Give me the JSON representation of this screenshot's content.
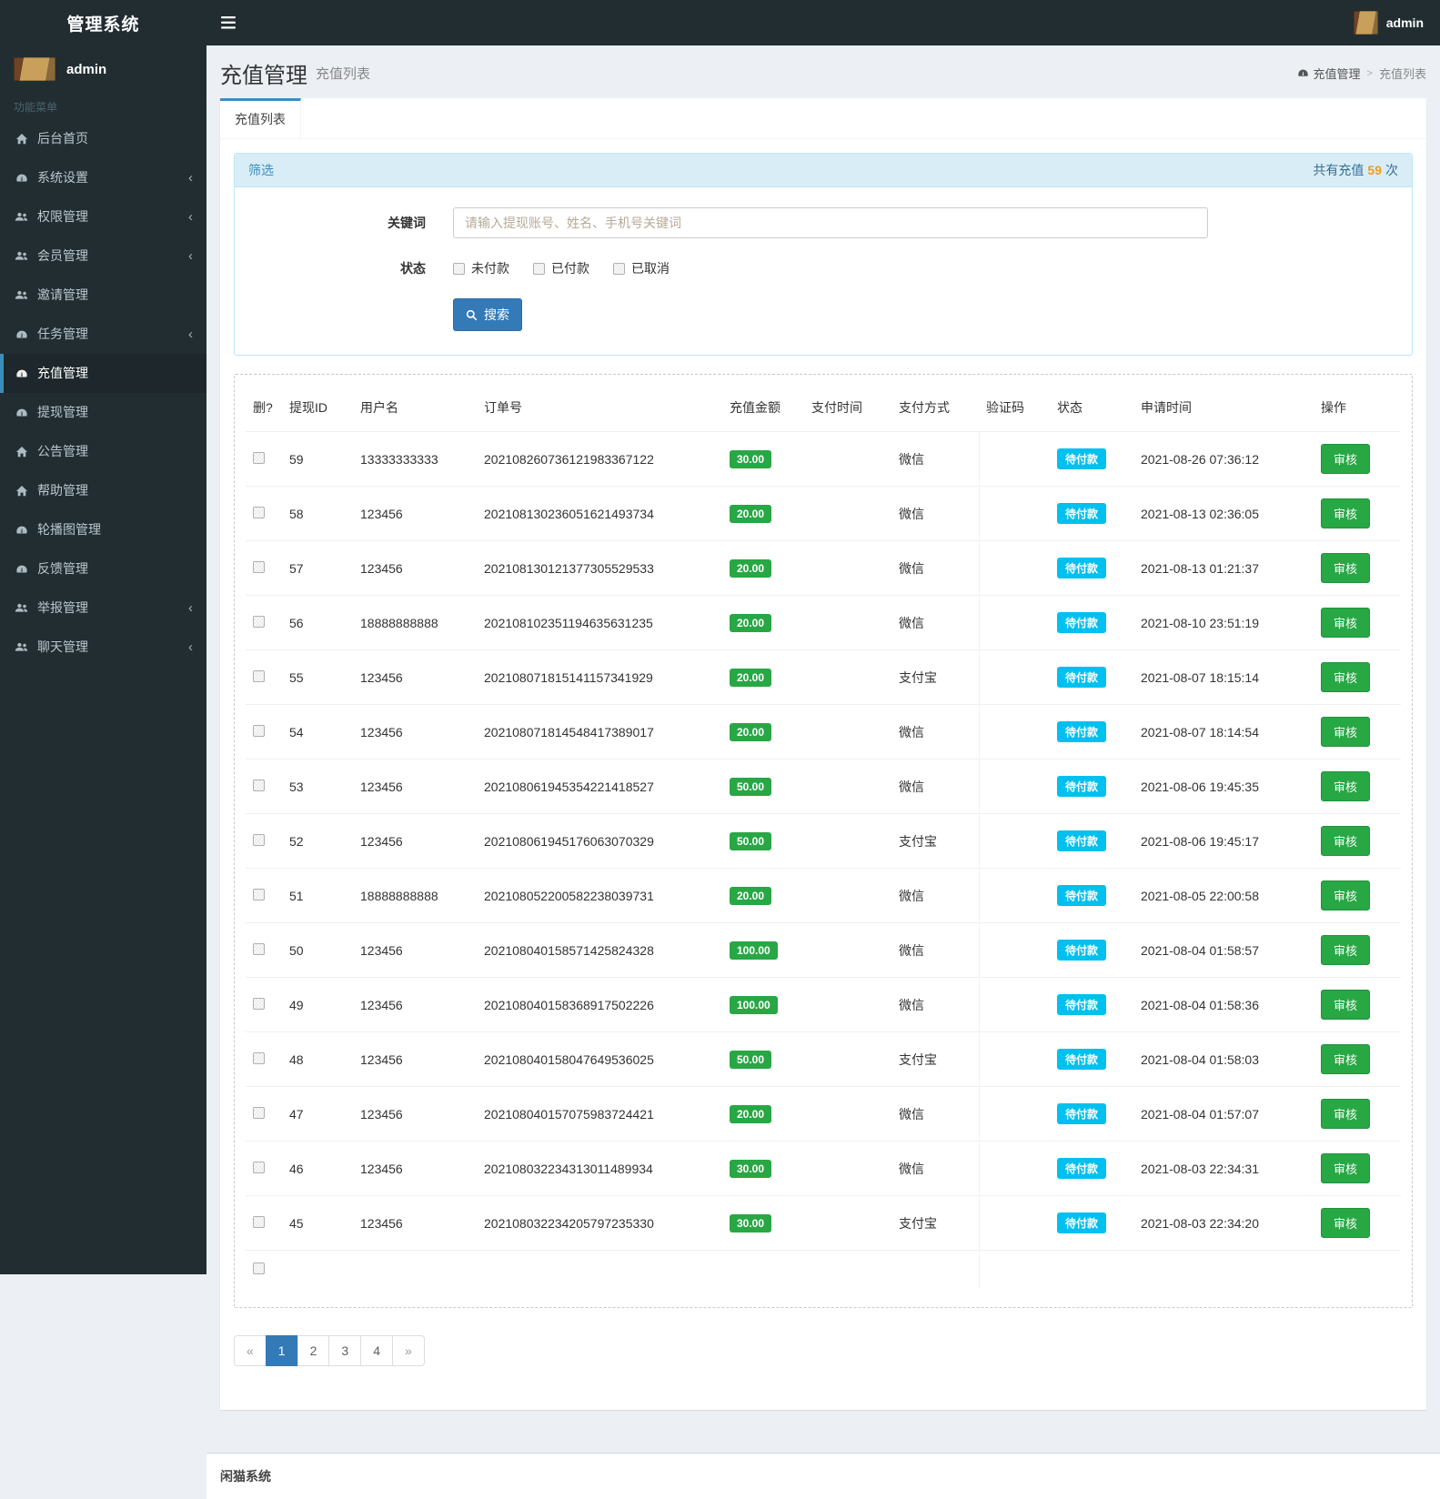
{
  "app": {
    "title": "管理系统"
  },
  "header": {
    "user": "admin"
  },
  "sidebar": {
    "user_name": "admin",
    "menu_label": "功能菜单",
    "items": [
      {
        "key": "dashboard",
        "label": "后台首页",
        "icon": "home",
        "arrow": false,
        "active": false
      },
      {
        "key": "system",
        "label": "系统设置",
        "icon": "gauge",
        "arrow": true,
        "active": false
      },
      {
        "key": "permissions",
        "label": "权限管理",
        "icon": "users",
        "arrow": true,
        "active": false
      },
      {
        "key": "members",
        "label": "会员管理",
        "icon": "users",
        "arrow": true,
        "active": false
      },
      {
        "key": "invites",
        "label": "邀请管理",
        "icon": "users",
        "arrow": false,
        "active": false
      },
      {
        "key": "tasks",
        "label": "任务管理",
        "icon": "gauge",
        "arrow": true,
        "active": false
      },
      {
        "key": "recharge",
        "label": "充值管理",
        "icon": "gauge",
        "arrow": false,
        "active": true
      },
      {
        "key": "withdraw",
        "label": "提现管理",
        "icon": "gauge",
        "arrow": false,
        "active": false
      },
      {
        "key": "announcement",
        "label": "公告管理",
        "icon": "home",
        "arrow": false,
        "active": false
      },
      {
        "key": "help",
        "label": "帮助管理",
        "icon": "home",
        "arrow": false,
        "active": false
      },
      {
        "key": "carousel",
        "label": "轮播图管理",
        "icon": "gauge",
        "arrow": false,
        "active": false
      },
      {
        "key": "feedback",
        "label": "反馈管理",
        "icon": "gauge",
        "arrow": false,
        "active": false
      },
      {
        "key": "reports",
        "label": "举报管理",
        "icon": "users",
        "arrow": true,
        "active": false
      },
      {
        "key": "chat",
        "label": "聊天管理",
        "icon": "users",
        "arrow": true,
        "active": false
      }
    ]
  },
  "page": {
    "title": "充值管理",
    "subtitle": "充值列表",
    "breadcrumb_parent": "充值管理",
    "breadcrumb_current": "充值列表",
    "tab": "充值列表"
  },
  "filter": {
    "title": "筛选",
    "total_prefix": "共有充值",
    "total_count": "59",
    "total_suffix": "次",
    "keyword_label": "关键词",
    "keyword_placeholder": "请输入提现账号、姓名、手机号关键词",
    "keyword_value": "",
    "status_label": "状态",
    "status_options": [
      "未付款",
      "已付款",
      "已取消"
    ],
    "search_label": "搜索"
  },
  "table": {
    "columns": [
      "删?",
      "提现ID",
      "用户名",
      "订单号",
      "充值金额",
      "支付时间",
      "支付方式",
      "验证码",
      "状态",
      "申请时间",
      "操作"
    ],
    "action_label": "审核",
    "rows": [
      {
        "id": "59",
        "username": "13333333333",
        "order_no": "202108260736121983367122",
        "amount": "30.00",
        "pay_time": "",
        "pay_method": "微信",
        "verify_code": "",
        "status": "待付款",
        "apply_time": "2021-08-26 07:36:12"
      },
      {
        "id": "58",
        "username": "123456",
        "order_no": "202108130236051621493734",
        "amount": "20.00",
        "pay_time": "",
        "pay_method": "微信",
        "verify_code": "",
        "status": "待付款",
        "apply_time": "2021-08-13 02:36:05"
      },
      {
        "id": "57",
        "username": "123456",
        "order_no": "202108130121377305529533",
        "amount": "20.00",
        "pay_time": "",
        "pay_method": "微信",
        "verify_code": "",
        "status": "待付款",
        "apply_time": "2021-08-13 01:21:37"
      },
      {
        "id": "56",
        "username": "18888888888",
        "order_no": "202108102351194635631235",
        "amount": "20.00",
        "pay_time": "",
        "pay_method": "微信",
        "verify_code": "",
        "status": "待付款",
        "apply_time": "2021-08-10 23:51:19"
      },
      {
        "id": "55",
        "username": "123456",
        "order_no": "202108071815141157341929",
        "amount": "20.00",
        "pay_time": "",
        "pay_method": "支付宝",
        "verify_code": "",
        "status": "待付款",
        "apply_time": "2021-08-07 18:15:14"
      },
      {
        "id": "54",
        "username": "123456",
        "order_no": "202108071814548417389017",
        "amount": "20.00",
        "pay_time": "",
        "pay_method": "微信",
        "verify_code": "",
        "status": "待付款",
        "apply_time": "2021-08-07 18:14:54"
      },
      {
        "id": "53",
        "username": "123456",
        "order_no": "202108061945354221418527",
        "amount": "50.00",
        "pay_time": "",
        "pay_method": "微信",
        "verify_code": "",
        "status": "待付款",
        "apply_time": "2021-08-06 19:45:35"
      },
      {
        "id": "52",
        "username": "123456",
        "order_no": "202108061945176063070329",
        "amount": "50.00",
        "pay_time": "",
        "pay_method": "支付宝",
        "verify_code": "",
        "status": "待付款",
        "apply_time": "2021-08-06 19:45:17"
      },
      {
        "id": "51",
        "username": "18888888888",
        "order_no": "202108052200582238039731",
        "amount": "20.00",
        "pay_time": "",
        "pay_method": "微信",
        "verify_code": "",
        "status": "待付款",
        "apply_time": "2021-08-05 22:00:58"
      },
      {
        "id": "50",
        "username": "123456",
        "order_no": "202108040158571425824328",
        "amount": "100.00",
        "pay_time": "",
        "pay_method": "微信",
        "verify_code": "",
        "status": "待付款",
        "apply_time": "2021-08-04 01:58:57"
      },
      {
        "id": "49",
        "username": "123456",
        "order_no": "202108040158368917502226",
        "amount": "100.00",
        "pay_time": "",
        "pay_method": "微信",
        "verify_code": "",
        "status": "待付款",
        "apply_time": "2021-08-04 01:58:36"
      },
      {
        "id": "48",
        "username": "123456",
        "order_no": "202108040158047649536025",
        "amount": "50.00",
        "pay_time": "",
        "pay_method": "支付宝",
        "verify_code": "",
        "status": "待付款",
        "apply_time": "2021-08-04 01:58:03"
      },
      {
        "id": "47",
        "username": "123456",
        "order_no": "202108040157075983724421",
        "amount": "20.00",
        "pay_time": "",
        "pay_method": "微信",
        "verify_code": "",
        "status": "待付款",
        "apply_time": "2021-08-04 01:57:07"
      },
      {
        "id": "46",
        "username": "123456",
        "order_no": "202108032234313011489934",
        "amount": "30.00",
        "pay_time": "",
        "pay_method": "微信",
        "verify_code": "",
        "status": "待付款",
        "apply_time": "2021-08-03 22:34:31"
      },
      {
        "id": "45",
        "username": "123456",
        "order_no": "202108032234205797235330",
        "amount": "30.00",
        "pay_time": "",
        "pay_method": "支付宝",
        "verify_code": "",
        "status": "待付款",
        "apply_time": "2021-08-03 22:34:20"
      }
    ]
  },
  "pagination": {
    "items": [
      {
        "label": "«",
        "active": false
      },
      {
        "label": "1",
        "active": true
      },
      {
        "label": "2",
        "active": false
      },
      {
        "label": "3",
        "active": false
      },
      {
        "label": "4",
        "active": false
      },
      {
        "label": "»",
        "active": false
      }
    ]
  },
  "footer": {
    "text": "闲猫系统"
  },
  "colors": {
    "sidebar_dark": "#222d32",
    "accent_blue": "#3c8dbc",
    "success_green": "#28a745",
    "info_cyan": "#00c0ef",
    "count_orange": "#f39c12"
  }
}
